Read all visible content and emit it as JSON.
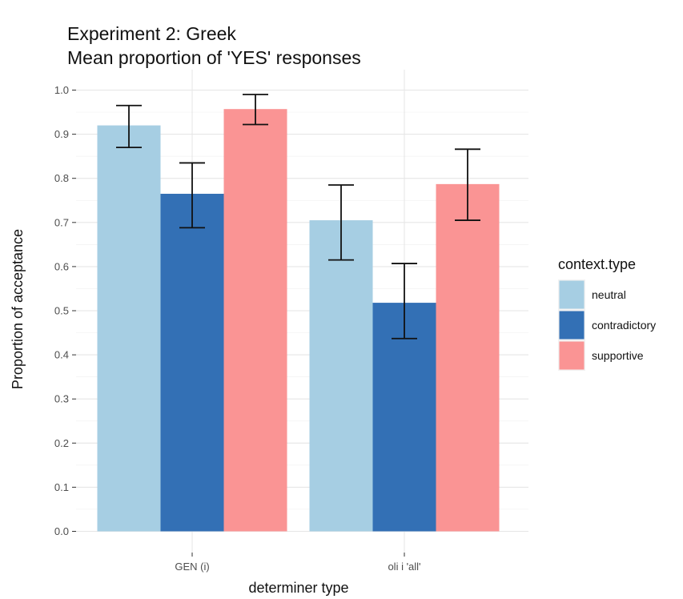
{
  "chart_data": {
    "type": "bar",
    "title": "Experiment 2: Greek",
    "subtitle": "Mean proportion of 'YES' responses",
    "xlabel": "determiner type",
    "ylabel": "Proportion of acceptance",
    "categories": [
      "GEN (i)",
      "oli i 'all'"
    ],
    "ylim": [
      0.0,
      1.0
    ],
    "yticks": [
      "0.0",
      "0.1",
      "0.2",
      "0.3",
      "0.4",
      "0.5",
      "0.6",
      "0.7",
      "0.8",
      "0.9",
      "1.0"
    ],
    "grid": true,
    "legend": {
      "title": "context.type",
      "position": "right"
    },
    "series": [
      {
        "name": "neutral",
        "color": "#a6cee3",
        "values": [
          0.92,
          0.705
        ],
        "err_low": [
          0.87,
          0.615
        ],
        "err_high": [
          0.965,
          0.785
        ]
      },
      {
        "name": "contradictory",
        "color": "#3370b5",
        "values": [
          0.765,
          0.518
        ],
        "err_low": [
          0.688,
          0.437
        ],
        "err_high": [
          0.835,
          0.607
        ]
      },
      {
        "name": "supportive",
        "color": "#fa9494",
        "values": [
          0.957,
          0.787
        ],
        "err_low": [
          0.922,
          0.705
        ],
        "err_high": [
          0.99,
          0.866
        ]
      }
    ]
  }
}
